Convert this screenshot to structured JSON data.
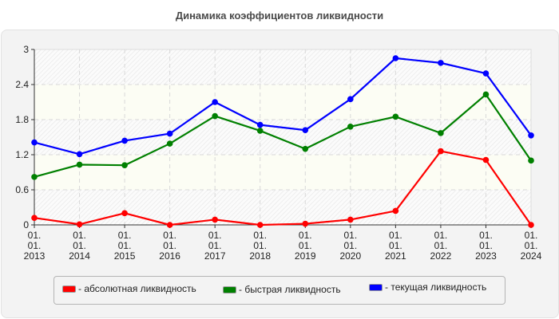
{
  "chart_data": {
    "type": "line",
    "title": "Динамика коэффициентов ликвидности",
    "xlabel": "",
    "ylabel": "",
    "categories": [
      "01.01.2013",
      "01.01.2014",
      "01.01.2015",
      "01.01.2016",
      "01.01.2017",
      "01.01.2018",
      "01.01.2019",
      "01.01.2020",
      "01.01.2021",
      "01.01.2022",
      "01.01.2023",
      "01.01.2024"
    ],
    "category_lines": [
      [
        "01.",
        "01.",
        "2013"
      ],
      [
        "01.",
        "01.",
        "2014"
      ],
      [
        "01.",
        "01.",
        "2015"
      ],
      [
        "01.",
        "01.",
        "2016"
      ],
      [
        "01.",
        "01.",
        "2017"
      ],
      [
        "01.",
        "01.",
        "2018"
      ],
      [
        "01.",
        "01.",
        "2019"
      ],
      [
        "01.",
        "01.",
        "2020"
      ],
      [
        "01.",
        "01.",
        "2021"
      ],
      [
        "01.",
        "01.",
        "2022"
      ],
      [
        "01.",
        "01.",
        "2023"
      ],
      [
        "01.",
        "01.",
        "2024"
      ]
    ],
    "yticks": [
      "0",
      "0.6",
      "1.2",
      "1.8",
      "2.4",
      "3"
    ],
    "ylim": [
      0,
      3
    ],
    "grid": true,
    "legend_position": "bottom",
    "series": [
      {
        "name": "- абсолютная ликвидность",
        "color": "#ff0000",
        "values": [
          0.12,
          0.01,
          0.2,
          0.0,
          0.09,
          0.0,
          0.02,
          0.09,
          0.24,
          1.26,
          1.11,
          0.0
        ]
      },
      {
        "name": "- быстрая ликвидность",
        "color": "#008000",
        "values": [
          0.82,
          1.03,
          1.02,
          1.39,
          1.86,
          1.61,
          1.3,
          1.68,
          1.85,
          1.57,
          2.23,
          1.1
        ]
      },
      {
        "name": "- текущая ликвидность",
        "color": "#0000ff",
        "values": [
          1.41,
          1.21,
          1.44,
          1.56,
          2.1,
          1.71,
          1.62,
          2.15,
          2.85,
          2.77,
          2.59,
          1.53
        ]
      }
    ]
  }
}
